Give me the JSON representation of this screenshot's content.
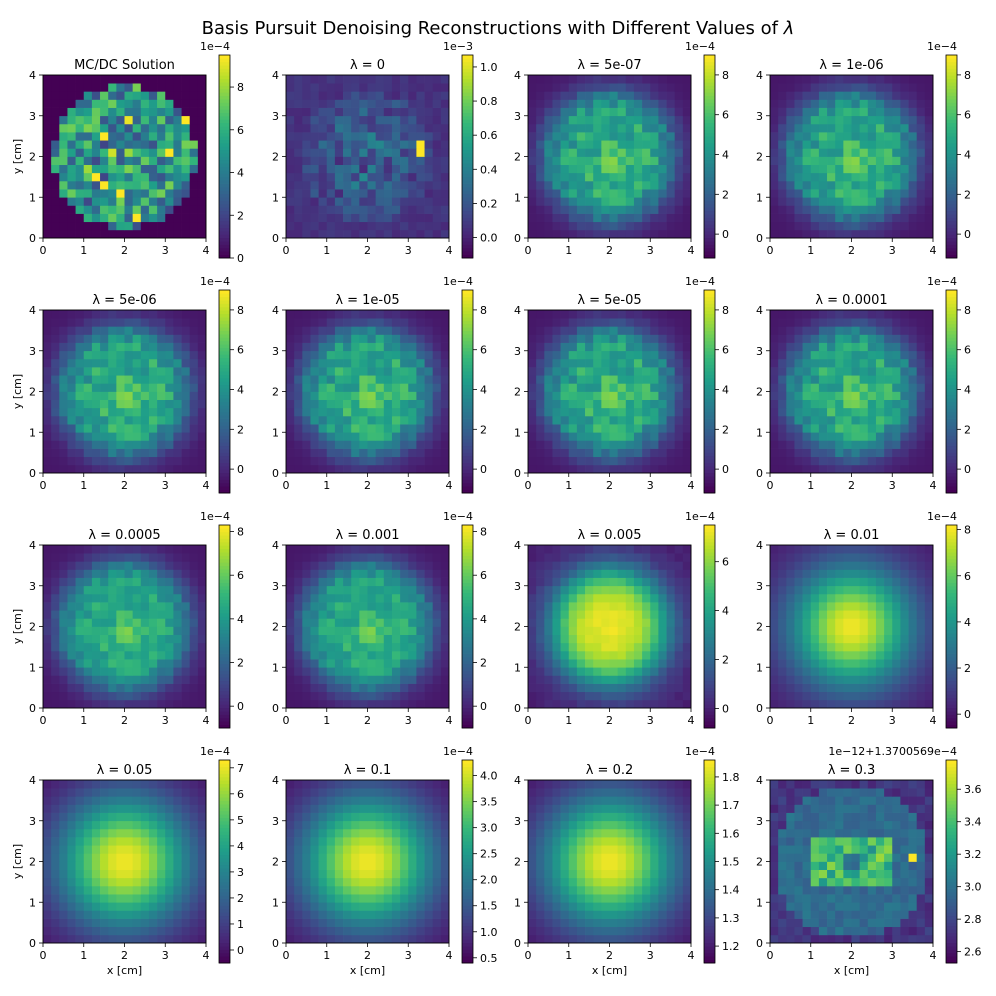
{
  "figure": {
    "title_prefix": "Basis Pursuit Denoising Reconstructions with Different Values of ",
    "title_symbol": "λ"
  },
  "chart_data": [
    {
      "type": "heatmap",
      "title": "MC/DC Solution",
      "pattern": "disk",
      "xlabel": "",
      "ylabel": "y [cm]",
      "cbar_exponent": "1e−4",
      "cbar_ticks": [
        "0",
        "2",
        "4",
        "6",
        "8"
      ],
      "cbar_min": 0,
      "cbar_max": 9.5
    },
    {
      "type": "heatmap",
      "title": "λ = 0",
      "pattern": "noisy",
      "xlabel": "",
      "ylabel": "",
      "cbar_exponent": "1e−3",
      "cbar_ticks": [
        "0.0",
        "0.2",
        "0.4",
        "0.6",
        "0.8",
        "1.0"
      ],
      "cbar_min": -0.12,
      "cbar_max": 1.07
    },
    {
      "type": "heatmap",
      "title": "λ = 5e-07",
      "pattern": "recon",
      "xlabel": "",
      "ylabel": "",
      "cbar_exponent": "1e−4",
      "cbar_ticks": [
        "0",
        "2",
        "4",
        "6",
        "8"
      ],
      "cbar_min": -1.2,
      "cbar_max": 9.0
    },
    {
      "type": "heatmap",
      "title": "λ = 1e-06",
      "pattern": "recon",
      "xlabel": "",
      "ylabel": "",
      "cbar_exponent": "1e−4",
      "cbar_ticks": [
        "0",
        "2",
        "4",
        "6",
        "8"
      ],
      "cbar_min": -1.2,
      "cbar_max": 9.0
    },
    {
      "type": "heatmap",
      "title": "λ = 5e-06",
      "pattern": "recon",
      "xlabel": "",
      "ylabel": "y [cm]",
      "cbar_exponent": "1e−4",
      "cbar_ticks": [
        "0",
        "2",
        "4",
        "6",
        "8"
      ],
      "cbar_min": -1.2,
      "cbar_max": 9.0
    },
    {
      "type": "heatmap",
      "title": "λ = 1e-05",
      "pattern": "recon",
      "xlabel": "",
      "ylabel": "",
      "cbar_exponent": "1e−4",
      "cbar_ticks": [
        "0",
        "2",
        "4",
        "6",
        "8"
      ],
      "cbar_min": -1.2,
      "cbar_max": 9.0
    },
    {
      "type": "heatmap",
      "title": "λ = 5e-05",
      "pattern": "recon",
      "xlabel": "",
      "ylabel": "",
      "cbar_exponent": "1e−4",
      "cbar_ticks": [
        "0",
        "2",
        "4",
        "6",
        "8"
      ],
      "cbar_min": -1.2,
      "cbar_max": 9.0
    },
    {
      "type": "heatmap",
      "title": "λ = 0.0001",
      "pattern": "recon",
      "xlabel": "",
      "ylabel": "",
      "cbar_exponent": "1e−4",
      "cbar_ticks": [
        "0",
        "2",
        "4",
        "6",
        "8"
      ],
      "cbar_min": -1.2,
      "cbar_max": 9.0
    },
    {
      "type": "heatmap",
      "title": "λ = 0.0005",
      "pattern": "recon_soft",
      "xlabel": "",
      "ylabel": "y [cm]",
      "cbar_exponent": "1e−4",
      "cbar_ticks": [
        "0",
        "2",
        "4",
        "6",
        "8"
      ],
      "cbar_min": -1.0,
      "cbar_max": 8.3
    },
    {
      "type": "heatmap",
      "title": "λ = 0.001",
      "pattern": "recon_soft",
      "xlabel": "",
      "ylabel": "",
      "cbar_exponent": "1e−4",
      "cbar_ticks": [
        "0",
        "2",
        "4",
        "6",
        "8"
      ],
      "cbar_min": -1.0,
      "cbar_max": 8.3
    },
    {
      "type": "heatmap",
      "title": "λ = 0.005",
      "pattern": "blob",
      "xlabel": "",
      "ylabel": "",
      "cbar_exponent": "1e−4",
      "cbar_ticks": [
        "0",
        "2",
        "4",
        "6"
      ],
      "cbar_min": -0.8,
      "cbar_max": 7.5
    },
    {
      "type": "heatmap",
      "title": "λ = 0.01",
      "pattern": "smooth",
      "xlabel": "",
      "ylabel": "",
      "cbar_exponent": "1e−4",
      "cbar_ticks": [
        "0",
        "2",
        "4",
        "6",
        "8"
      ],
      "cbar_min": -0.6,
      "cbar_max": 8.2
    },
    {
      "type": "heatmap",
      "title": "λ = 0.05",
      "pattern": "gauss",
      "xlabel": "x [cm]",
      "ylabel": "y [cm]",
      "cbar_exponent": "1e−4",
      "cbar_ticks": [
        "0",
        "1",
        "2",
        "3",
        "4",
        "5",
        "6",
        "7"
      ],
      "cbar_min": -0.5,
      "cbar_max": 7.3
    },
    {
      "type": "heatmap",
      "title": "λ = 0.1",
      "pattern": "gauss",
      "xlabel": "x [cm]",
      "ylabel": "",
      "cbar_exponent": "1e−4",
      "cbar_ticks": [
        "0.5",
        "1.0",
        "1.5",
        "2.0",
        "2.5",
        "3.0",
        "3.5",
        "4.0"
      ],
      "cbar_min": 0.4,
      "cbar_max": 4.3
    },
    {
      "type": "heatmap",
      "title": "λ = 0.2",
      "pattern": "gauss",
      "xlabel": "x [cm]",
      "ylabel": "",
      "cbar_exponent": "1e−4",
      "cbar_ticks": [
        "1.2",
        "1.3",
        "1.4",
        "1.5",
        "1.6",
        "1.7",
        "1.8"
      ],
      "cbar_min": 1.14,
      "cbar_max": 1.86
    },
    {
      "type": "heatmap",
      "title": "λ = 0.3",
      "pattern": "weird",
      "xlabel": "x [cm]",
      "ylabel": "",
      "cbar_exponent": "1e−12+1.3700569e−4",
      "cbar_ticks": [
        "2.6",
        "2.8",
        "3.0",
        "3.2",
        "3.4",
        "3.6"
      ],
      "cbar_min": 2.53,
      "cbar_max": 3.78
    }
  ],
  "axes": {
    "x_ticks": [
      "0",
      "1",
      "2",
      "3",
      "4"
    ],
    "y_ticks": [
      "0",
      "1",
      "2",
      "3",
      "4"
    ],
    "xlim": [
      0,
      4
    ],
    "ylim": [
      0,
      4
    ],
    "grid_cells": 20,
    "colormap": "viridis"
  }
}
